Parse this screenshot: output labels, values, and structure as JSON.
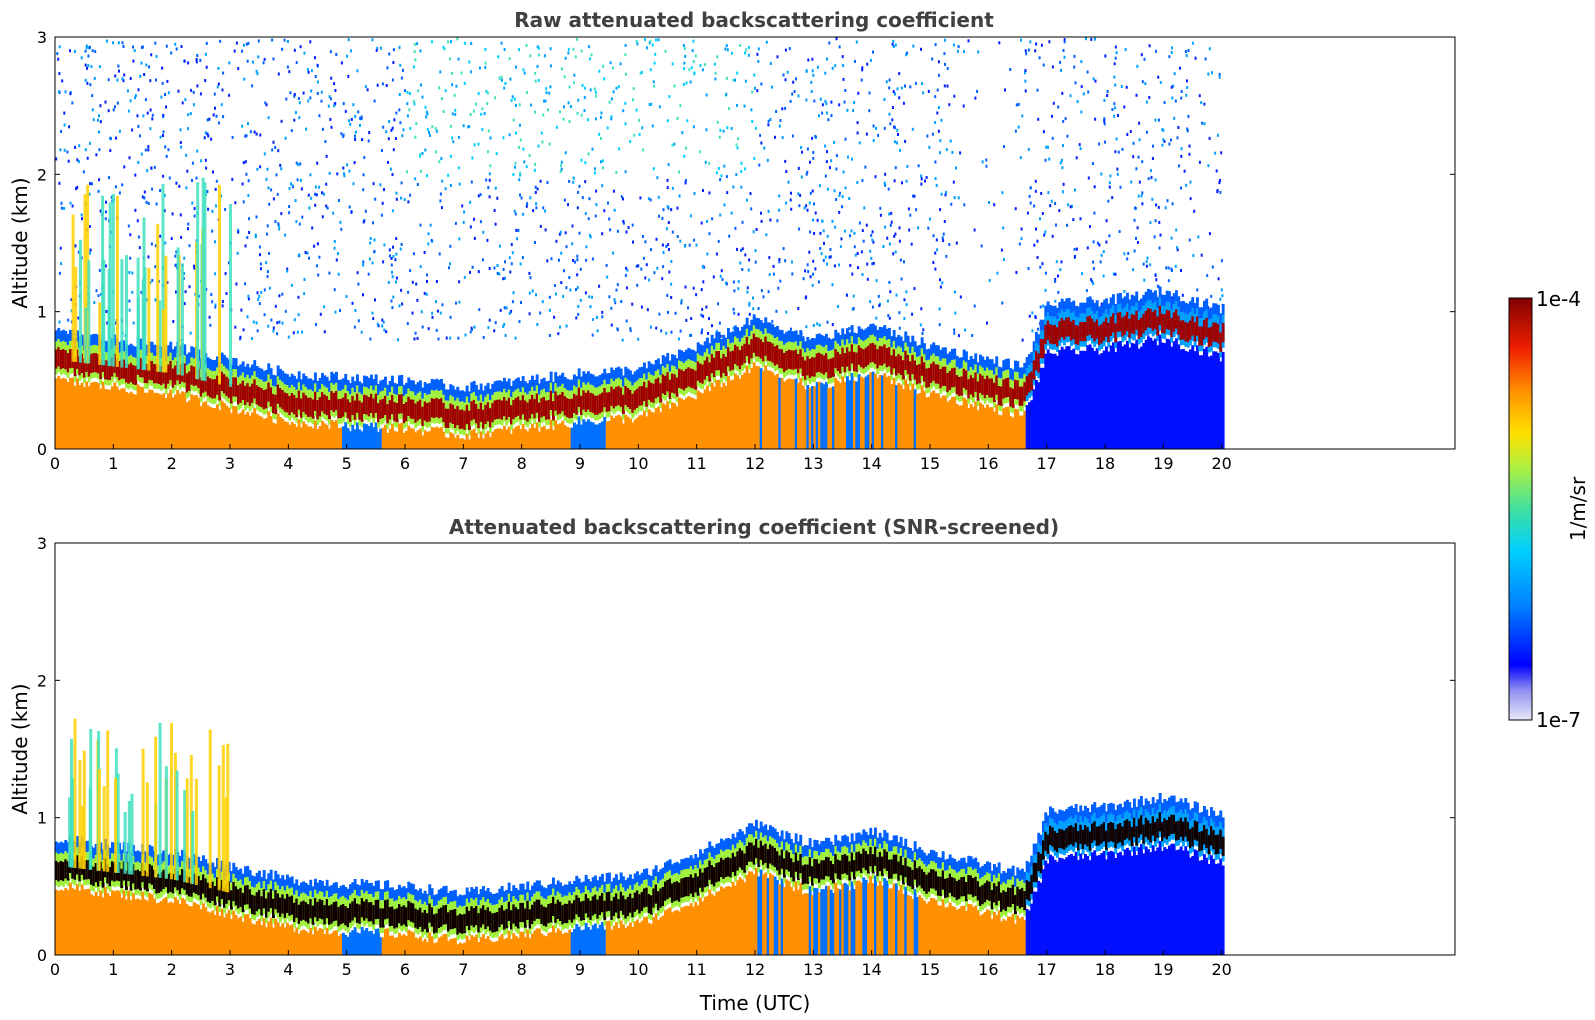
{
  "chart_data": [
    {
      "type": "heatmap",
      "title": "Raw attenuated backscattering coefficient",
      "xlabel": "",
      "ylabel": "Altitude (km)",
      "xlim": [
        0,
        24
      ],
      "ylim": [
        0,
        3
      ],
      "x_ticks": [
        "0",
        "1",
        "2",
        "3",
        "4",
        "5",
        "6",
        "7",
        "8",
        "9",
        "10",
        "11",
        "12",
        "13",
        "14",
        "15",
        "16",
        "17",
        "18",
        "19",
        "20"
      ],
      "y_ticks": [
        "0",
        "1",
        "2",
        "3"
      ],
      "data_extent_hours": [
        0,
        20
      ],
      "description_values": {
        "boundary_layer_top_km": [
          {
            "t": 0,
            "z": 0.65
          },
          {
            "t": 1,
            "z": 0.6
          },
          {
            "t": 2,
            "z": 0.55
          },
          {
            "t": 3,
            "z": 0.45
          },
          {
            "t": 4,
            "z": 0.35
          },
          {
            "t": 5,
            "z": 0.32
          },
          {
            "t": 6,
            "z": 0.3
          },
          {
            "t": 7,
            "z": 0.25
          },
          {
            "t": 8,
            "z": 0.3
          },
          {
            "t": 9,
            "z": 0.35
          },
          {
            "t": 10,
            "z": 0.38
          },
          {
            "t": 11,
            "z": 0.55
          },
          {
            "t": 12,
            "z": 0.75
          },
          {
            "t": 13,
            "z": 0.6
          },
          {
            "t": 14,
            "z": 0.7
          },
          {
            "t": 15,
            "z": 0.55
          },
          {
            "t": 16,
            "z": 0.45
          },
          {
            "t": 16.6,
            "z": 0.4
          },
          {
            "t": 17,
            "z": 0.85
          },
          {
            "t": 18,
            "z": 0.88
          },
          {
            "t": 19,
            "z": 0.95
          },
          {
            "t": 20,
            "z": 0.82
          }
        ]
      }
    },
    {
      "type": "heatmap",
      "title": "Attenuated backscattering coefficient (SNR-screened)",
      "xlabel": "Time (UTC)",
      "ylabel": "Altitude (km)",
      "xlim": [
        0,
        24
      ],
      "ylim": [
        0,
        3
      ],
      "x_ticks": [
        "0",
        "1",
        "2",
        "3",
        "4",
        "5",
        "6",
        "7",
        "8",
        "9",
        "10",
        "11",
        "12",
        "13",
        "14",
        "15",
        "16",
        "17",
        "18",
        "19",
        "20"
      ],
      "y_ticks": [
        "0",
        "1",
        "2",
        "3"
      ],
      "data_extent_hours": [
        0,
        20
      ]
    }
  ],
  "colorbar": {
    "label": "1/m/sr",
    "max_label": "1e-4",
    "min_label": "1e-7",
    "scale": "log",
    "range": [
      1e-07,
      0.0001
    ],
    "colormap": [
      "#e8e8f8",
      "#b0b0f0",
      "#6060f0",
      "#0000ff",
      "#0040ff",
      "#0090ff",
      "#00d0ff",
      "#20e0c0",
      "#80f060",
      "#d0f020",
      "#ffe000",
      "#ffa000",
      "#ff6000",
      "#f02000",
      "#c00000",
      "#800000"
    ]
  }
}
